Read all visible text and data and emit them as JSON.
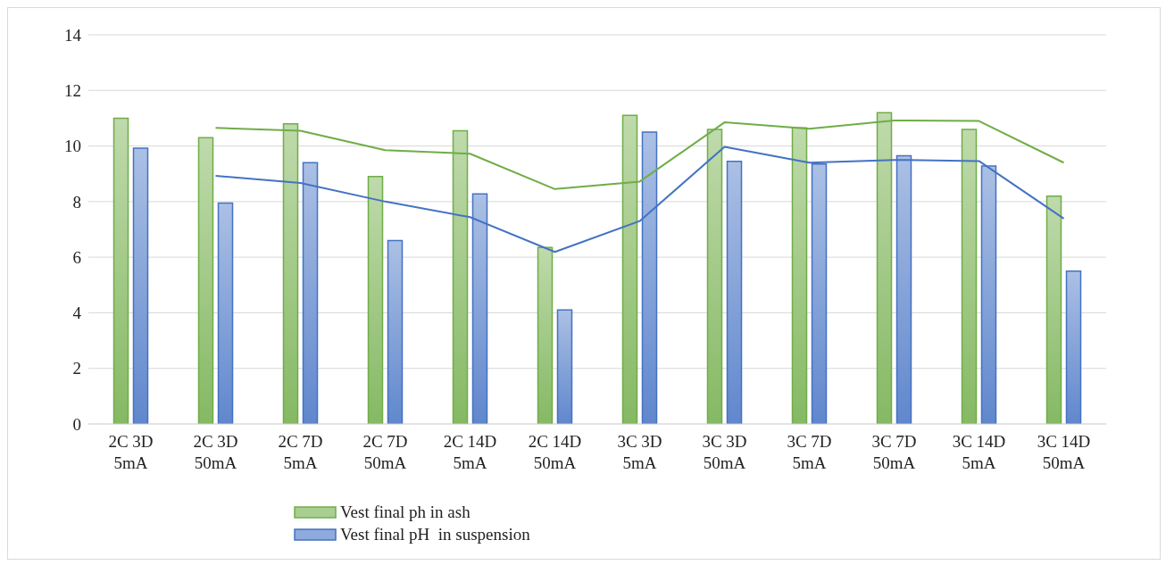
{
  "chart_data": {
    "type": "bar",
    "categories": [
      "2C 3D 5mA",
      "2C 3D 50mA",
      "2C 7D 5mA",
      "2C 7D 50mA",
      "2C 14D 5mA",
      "2C 14D 50mA",
      "3C 3D 5mA",
      "3C 3D 50mA",
      "3C 7D 5mA",
      "3C 7D 50mA",
      "3C 14D 5mA",
      "3C 14D 50mA"
    ],
    "series": [
      {
        "name": "Vest final ph in ash",
        "color": "#70ad47",
        "values": [
          11.0,
          10.3,
          10.8,
          8.9,
          10.55,
          6.35,
          11.1,
          10.6,
          10.65,
          11.2,
          10.6,
          8.2
        ]
      },
      {
        "name": "Vest final pH  in suspension",
        "color": "#4472c4",
        "values": [
          9.92,
          7.95,
          9.4,
          6.6,
          8.28,
          4.1,
          10.5,
          9.45,
          9.35,
          9.65,
          9.28,
          5.5
        ]
      },
      {
        "type": "line",
        "color": "#70ad47",
        "values": [
          null,
          10.65,
          10.55,
          9.85,
          9.72,
          8.45,
          8.72,
          10.85,
          10.62,
          10.92,
          10.9,
          9.4
        ]
      },
      {
        "type": "line",
        "color": "#4472c4",
        "values": [
          null,
          8.93,
          8.67,
          8.0,
          7.44,
          6.19,
          7.3,
          9.97,
          9.4,
          9.5,
          9.46,
          7.39
        ]
      }
    ],
    "ylim": [
      0,
      14
    ],
    "yticks": [
      0,
      2,
      4,
      6,
      8,
      10,
      12,
      14
    ],
    "grid": "y",
    "legend": "bottom",
    "marker": "none",
    "line_style": "solid"
  }
}
